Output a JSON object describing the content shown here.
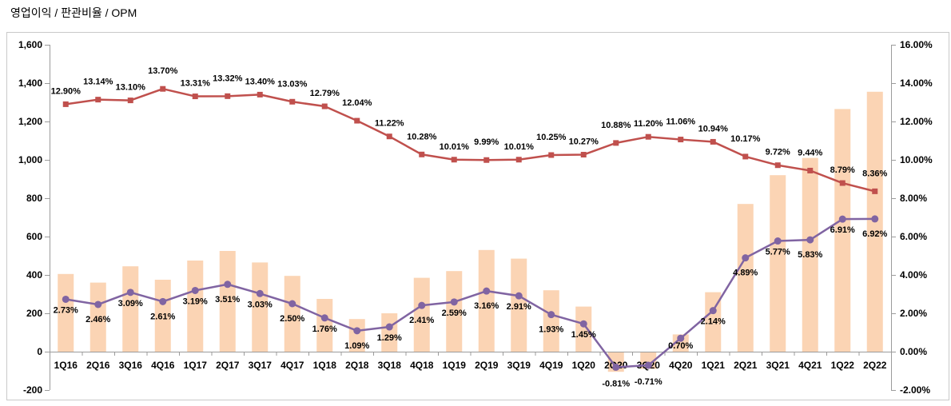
{
  "title": "영업이익 / 판관비율 / OPM",
  "colors": {
    "bar": "#FBD4B4",
    "sga_line": "#C0504D",
    "opm_line": "#8064A2",
    "axis_line": "#9b9b9b",
    "frame_border": "#c9c9c9",
    "negative_tick": "#FF0000",
    "label_text": "#000000",
    "background": "#FFFFFF"
  },
  "chart_data": {
    "type": "bar",
    "subtype": "bar+line combo, dual axis",
    "title": "영업이익 / 판관비율 / OPM",
    "xlabel": "",
    "ylabel_left": "",
    "ylabel_right": "",
    "grid": false,
    "legend": "none",
    "categories": [
      "1Q16",
      "2Q16",
      "3Q16",
      "4Q16",
      "1Q17",
      "2Q17",
      "3Q17",
      "4Q17",
      "1Q18",
      "2Q18",
      "3Q18",
      "4Q18",
      "1Q19",
      "2Q19",
      "3Q19",
      "4Q19",
      "1Q20",
      "2Q20",
      "3Q20",
      "4Q20",
      "1Q21",
      "2Q21",
      "3Q21",
      "4Q21",
      "1Q22",
      "2Q22"
    ],
    "series": [
      {
        "name": "영업이익",
        "type": "bar",
        "axis": "left",
        "color": "#FBD4B4",
        "values": [
          405,
          360,
          445,
          375,
          475,
          525,
          465,
          395,
          275,
          170,
          200,
          385,
          420,
          530,
          485,
          320,
          235,
          -105,
          -90,
          90,
          310,
          770,
          920,
          1010,
          1265,
          1355
        ]
      },
      {
        "name": "판관비율",
        "type": "line",
        "axis": "right",
        "color": "#C0504D",
        "marker": "square",
        "values": [
          12.9,
          13.14,
          13.1,
          13.7,
          13.31,
          13.32,
          13.4,
          13.03,
          12.79,
          12.04,
          11.22,
          10.28,
          10.01,
          9.99,
          10.01,
          10.25,
          10.27,
          10.88,
          11.2,
          11.06,
          10.94,
          10.17,
          9.72,
          9.44,
          8.79,
          8.36
        ],
        "labels": [
          "12.90%",
          "13.14%",
          "13.10%",
          "13.70%",
          "13.31%",
          "13.32%",
          "13.40%",
          "13.03%",
          "12.79%",
          "12.04%",
          "11.22%",
          "10.28%",
          "10.01%",
          "9.99%",
          "10.01%",
          "10.25%",
          "10.27%",
          "10.88%",
          "11.20%",
          "11.06%",
          "10.94%",
          "10.17%",
          "9.72%",
          "9.44%",
          "8.79%",
          "8.36%"
        ]
      },
      {
        "name": "OPM",
        "type": "line",
        "axis": "right",
        "color": "#8064A2",
        "marker": "circle",
        "values": [
          2.73,
          2.46,
          3.09,
          2.61,
          3.19,
          3.51,
          3.03,
          2.5,
          1.76,
          1.09,
          1.29,
          2.41,
          2.59,
          3.16,
          2.91,
          1.93,
          1.45,
          -0.81,
          -0.71,
          0.7,
          2.14,
          4.89,
          5.77,
          5.83,
          6.91,
          6.92
        ],
        "labels": [
          "2.73%",
          "2.46%",
          "3.09%",
          "2.61%",
          "3.19%",
          "3.51%",
          "3.03%",
          "2.50%",
          "1.76%",
          "1.09%",
          "1.29%",
          "2.41%",
          "2.59%",
          "3.16%",
          "2.91%",
          "1.93%",
          "1.45%",
          "-0.81%",
          "-0.71%",
          "0.70%",
          "2.14%",
          "4.89%",
          "5.77%",
          "5.83%",
          "6.91%",
          "6.92%"
        ]
      }
    ],
    "left_axis": {
      "min": -200,
      "max": 1600,
      "step": 200,
      "labels": [
        "1,600",
        "1,400",
        "1,200",
        "1,000",
        "800",
        "600",
        "400",
        "200",
        "0",
        "-200"
      ],
      "negative_label_color": "#FF0000"
    },
    "right_axis": {
      "min": -2,
      "max": 16,
      "step": 2,
      "labels": [
        "16.00%",
        "14.00%",
        "12.00%",
        "10.00%",
        "8.00%",
        "6.00%",
        "4.00%",
        "2.00%",
        "0.00%",
        "-2.00%"
      ]
    }
  }
}
